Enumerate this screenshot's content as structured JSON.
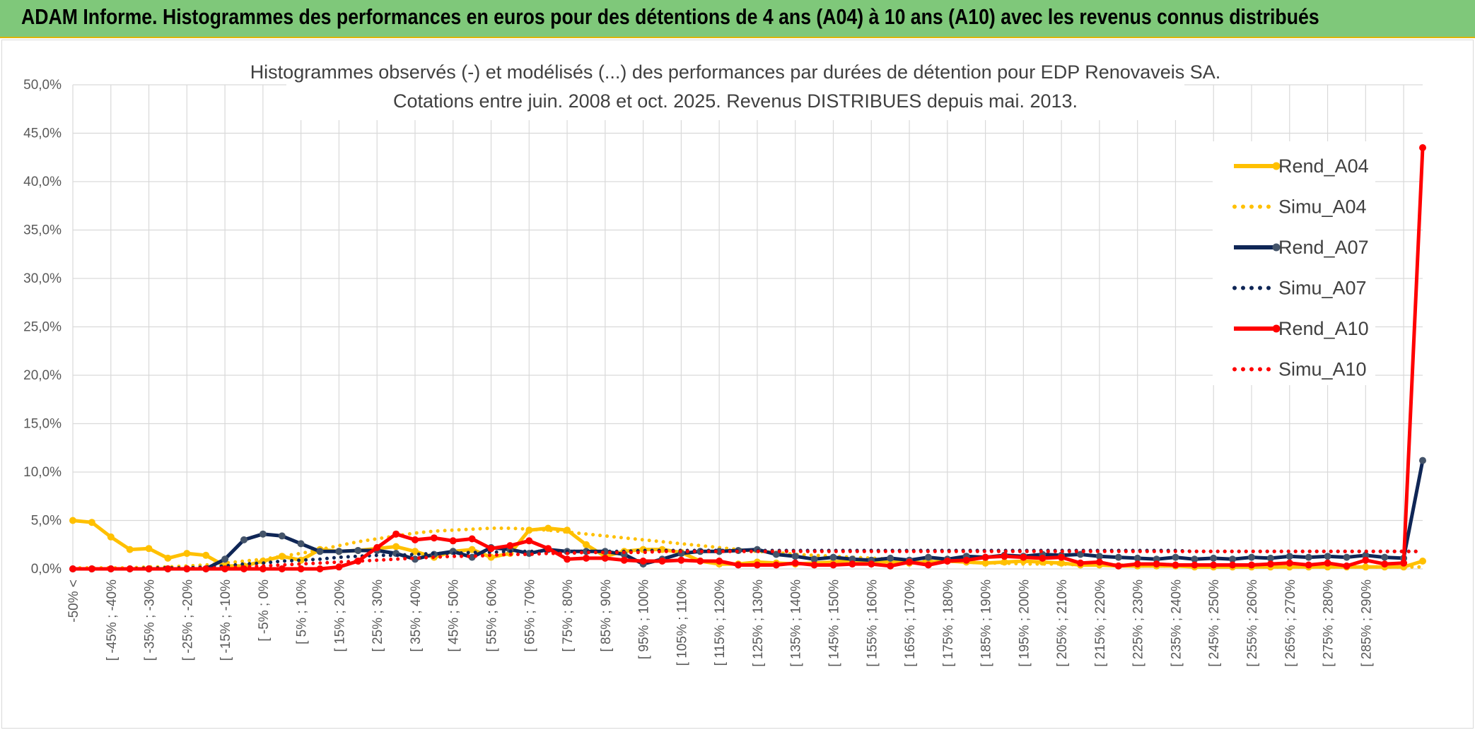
{
  "banner": {
    "title": "ADAM Informe. Histogrammes des performances en euros pour des détentions de 4 ans (A04) à 10 ans (A10) avec les revenus connus distribués"
  },
  "colors": {
    "banner_bg": "#7fc87a",
    "a04": "#ffc000",
    "a07": "#0f2656",
    "a07_marker": "#44546a",
    "a10": "#ff0000"
  },
  "chart_data": {
    "type": "line",
    "title_line1": "Histogrammes observés (-) et modélisés (...) des performances par durées de détention pour EDP Renovaveis SA.",
    "title_line2": "Cotations entre juin. 2008 et oct. 2025. Revenus DISTRIBUES depuis mai. 2013.",
    "ylim": [
      0,
      50
    ],
    "yticks": [
      "0,0%",
      "5,0%",
      "10,0%",
      "15,0%",
      "20,0%",
      "25,0%",
      "30,0%",
      "35,0%",
      "40,0%",
      "45,0%",
      "50,0%"
    ],
    "xtick_labels": [
      "-50% <",
      "[ -45% ; -40%",
      "[ -35% ; -30%",
      "[ -25% ; -20%",
      "[ -15% ; -10%",
      "[ -5% ; 0%",
      "[ 5% ; 10%",
      "[ 15% ; 20%",
      "[ 25% ; 30%",
      "[ 35% ; 40%",
      "[ 45% ; 50%",
      "[ 55% ; 60%",
      "[ 65% ; 70%",
      "[ 75% ; 80%",
      "[ 85% ; 90%",
      "[ 95% ; 100%",
      "[ 105% ; 110%",
      "[ 115% ; 120%",
      "[ 125% ; 130%",
      "[ 135% ; 140%",
      "[ 145% ; 150%",
      "[ 155% ; 160%",
      "[ 165% ; 170%",
      "[ 175% ; 180%",
      "[ 185% ; 190%",
      "[ 195% ; 200%",
      "[ 205% ; 210%",
      "[ 215% ; 220%",
      "[ 225% ; 230%",
      "[ 235% ; 240%",
      "[ 245% ; 250%",
      "[ 255% ; 260%",
      "[ 265% ; 270%",
      "[ 275% ; 280%",
      "[ 285% ; 290%"
    ],
    "n_bins": 72,
    "legend_position": "right",
    "series": [
      {
        "name": "Rend_A04",
        "style": "solid",
        "color": "#ffc000",
        "values": [
          5.0,
          4.8,
          3.3,
          2.0,
          2.1,
          1.1,
          1.6,
          1.4,
          0.3,
          0.3,
          0.8,
          1.3,
          0.9,
          2.0,
          1.8,
          1.9,
          2.1,
          2.3,
          1.8,
          1.2,
          1.8,
          2.0,
          1.2,
          1.6,
          4.0,
          4.2,
          4.0,
          2.5,
          1.3,
          1.8,
          2.0,
          2.0,
          1.7,
          0.8,
          0.5,
          0.5,
          0.7,
          0.6,
          0.5,
          0.6,
          0.7,
          0.9,
          0.8,
          0.7,
          0.6,
          0.7,
          0.8,
          0.7,
          0.6,
          0.7,
          0.8,
          0.7,
          0.6,
          0.4,
          0.4,
          0.3,
          0.3,
          0.3,
          0.3,
          0.2,
          0.2,
          0.2,
          0.2,
          0.2,
          0.2,
          0.2,
          0.2,
          0.2,
          0.2,
          0.2,
          0.2,
          0.8
        ]
      },
      {
        "name": "Simu_A04",
        "style": "dotted",
        "color": "#ffc000",
        "values": [
          0.1,
          0.1,
          0.1,
          0.1,
          0.2,
          0.2,
          0.3,
          0.4,
          0.6,
          0.8,
          1.0,
          1.3,
          1.6,
          2.0,
          2.4,
          2.8,
          3.1,
          3.4,
          3.7,
          3.9,
          4.0,
          4.1,
          4.2,
          4.2,
          4.1,
          4.0,
          3.8,
          3.6,
          3.4,
          3.2,
          3.0,
          2.8,
          2.6,
          2.4,
          2.2,
          2.0,
          1.8,
          1.7,
          1.5,
          1.4,
          1.3,
          1.2,
          1.1,
          1.0,
          0.9,
          0.8,
          0.8,
          0.7,
          0.6,
          0.6,
          0.5,
          0.5,
          0.5,
          0.4,
          0.4,
          0.4,
          0.3,
          0.3,
          0.3,
          0.3,
          0.3,
          0.2,
          0.2,
          0.2,
          0.2,
          0.2,
          0.2,
          0.2,
          0.2,
          0.2,
          0.2,
          0.2
        ]
      },
      {
        "name": "Rend_A07",
        "style": "solid",
        "color": "#0f2656",
        "marker": "#44546a",
        "values": [
          0.0,
          0.0,
          0.0,
          0.0,
          0.0,
          0.0,
          0.0,
          0.0,
          1.0,
          3.0,
          3.6,
          3.4,
          2.6,
          1.8,
          1.8,
          1.9,
          1.9,
          1.6,
          1.0,
          1.5,
          1.8,
          1.2,
          2.2,
          2.0,
          1.6,
          2.0,
          1.8,
          1.8,
          1.8,
          1.5,
          0.5,
          1.0,
          1.6,
          1.8,
          1.8,
          1.9,
          2.0,
          1.5,
          1.3,
          1.0,
          1.2,
          1.0,
          0.9,
          1.1,
          0.9,
          1.2,
          1.0,
          1.3,
          1.2,
          1.4,
          1.3,
          1.5,
          1.4,
          1.5,
          1.3,
          1.2,
          1.1,
          1.0,
          1.2,
          1.0,
          1.1,
          1.0,
          1.2,
          1.1,
          1.3,
          1.2,
          1.3,
          1.2,
          1.4,
          1.2,
          1.1,
          11.2
        ]
      },
      {
        "name": "Simu_A07",
        "style": "dotted",
        "color": "#0f2656",
        "values": [
          0.0,
          0.0,
          0.0,
          0.0,
          0.1,
          0.1,
          0.1,
          0.2,
          0.3,
          0.5,
          0.6,
          0.8,
          0.9,
          1.0,
          1.2,
          1.3,
          1.4,
          1.4,
          1.5,
          1.6,
          1.6,
          1.7,
          1.7,
          1.8,
          1.8,
          1.8,
          1.8,
          1.8,
          1.8,
          1.8,
          1.9,
          1.9,
          1.9,
          1.9,
          1.9,
          1.9,
          1.9,
          1.9,
          1.9,
          1.9,
          1.9,
          1.9,
          1.9,
          1.9,
          1.9,
          1.9,
          1.9,
          1.9,
          1.9,
          1.9,
          1.9,
          1.9,
          1.9,
          1.9,
          1.9,
          1.9,
          1.9,
          1.9,
          1.9,
          1.8,
          1.8,
          1.8,
          1.8,
          1.8,
          1.8,
          1.8,
          1.8,
          1.8,
          1.8,
          1.8,
          1.8,
          1.8
        ]
      },
      {
        "name": "Rend_A10",
        "style": "solid",
        "color": "#ff0000",
        "values": [
          0.0,
          0.0,
          0.0,
          0.0,
          0.0,
          0.0,
          0.0,
          0.0,
          0.0,
          0.0,
          0.0,
          0.0,
          0.0,
          0.0,
          0.2,
          0.8,
          2.2,
          3.6,
          3.0,
          3.2,
          2.9,
          3.1,
          2.1,
          2.4,
          2.9,
          2.1,
          1.0,
          1.1,
          1.1,
          0.9,
          0.8,
          0.8,
          0.9,
          0.8,
          0.8,
          0.4,
          0.4,
          0.4,
          0.6,
          0.4,
          0.4,
          0.5,
          0.5,
          0.3,
          0.7,
          0.4,
          0.8,
          0.9,
          1.2,
          1.3,
          1.2,
          1.1,
          1.2,
          0.6,
          0.7,
          0.3,
          0.5,
          0.5,
          0.4,
          0.4,
          0.4,
          0.4,
          0.4,
          0.5,
          0.6,
          0.4,
          0.6,
          0.3,
          0.9,
          0.5,
          0.6,
          43.5
        ]
      },
      {
        "name": "Simu_A10",
        "style": "dotted",
        "color": "#ff0000",
        "values": [
          0.0,
          0.0,
          0.0,
          0.0,
          0.0,
          0.0,
          0.0,
          0.1,
          0.1,
          0.2,
          0.3,
          0.4,
          0.5,
          0.6,
          0.7,
          0.8,
          0.9,
          1.0,
          1.1,
          1.2,
          1.3,
          1.3,
          1.4,
          1.5,
          1.5,
          1.6,
          1.6,
          1.7,
          1.7,
          1.7,
          1.7,
          1.8,
          1.8,
          1.8,
          1.8,
          1.8,
          1.8,
          1.8,
          1.8,
          1.8,
          1.8,
          1.8,
          1.8,
          1.8,
          1.8,
          1.8,
          1.8,
          1.8,
          1.8,
          1.8,
          1.8,
          1.8,
          1.8,
          1.8,
          1.8,
          1.8,
          1.8,
          1.8,
          1.8,
          1.8,
          1.8,
          1.8,
          1.8,
          1.8,
          1.8,
          1.8,
          1.8,
          1.8,
          1.8,
          1.8,
          1.8,
          1.8
        ]
      }
    ]
  }
}
